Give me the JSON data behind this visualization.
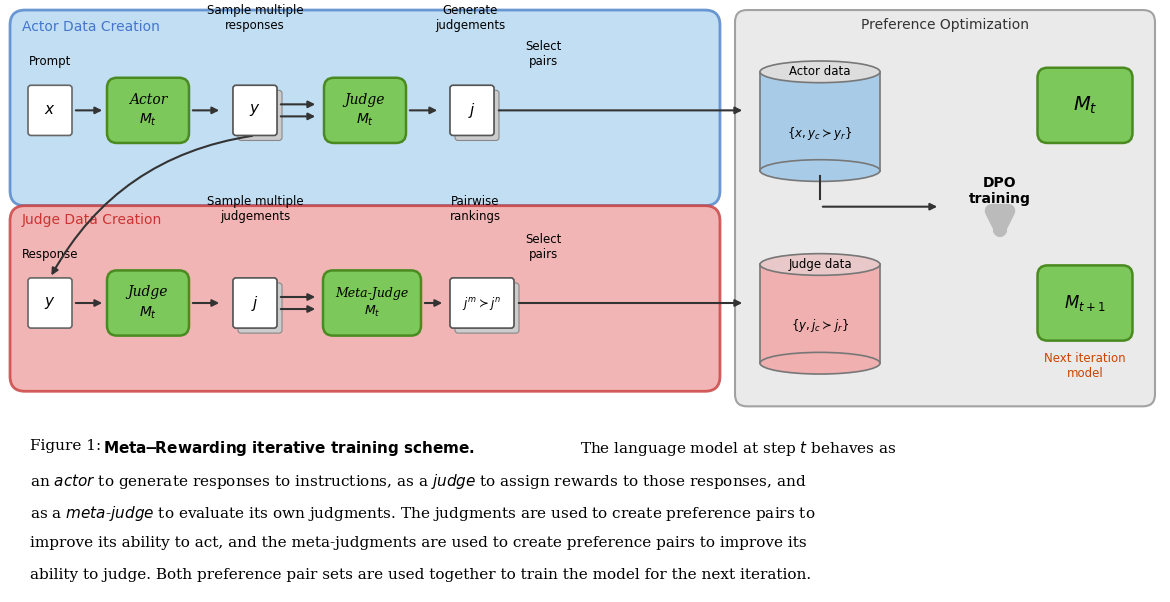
{
  "bg_color": "#ffffff",
  "fig_width": 11.7,
  "fig_height": 6.02,
  "green_color": "#7dc85a",
  "green_edge": "#4a8a20",
  "blue_bg": "#b8d9f0",
  "blue_edge": "#5588cc",
  "red_bg": "#f0a8a8",
  "red_edge": "#cc4444",
  "gray_bg": "#e8e8e8",
  "gray_edge": "#999999",
  "blue_cyl": "#a8cce8",
  "red_cyl": "#f0b0b0",
  "actor_label": "Actor Data Creation",
  "actor_label_color": "#4477cc",
  "judge_label": "Judge Data Creation",
  "judge_label_color": "#cc3333",
  "pref_label": "Preference Optimization",
  "pref_label_color": "#333333",
  "dpo_label_color": "#000000",
  "next_iter_color": "#cc4400"
}
